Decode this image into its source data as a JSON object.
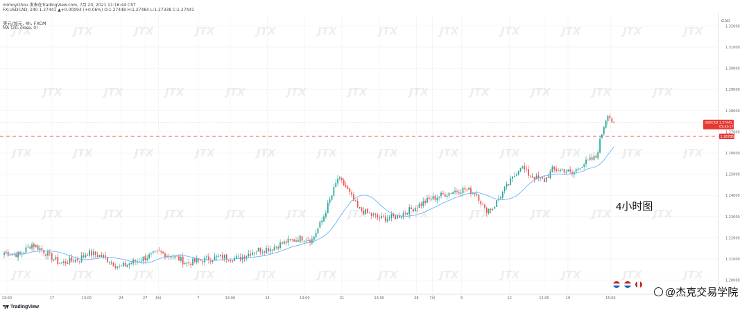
{
  "header": {
    "line1": "mimoyizhou 发表在TradingView.com, 7月 20, 2021 11:16:44 CST",
    "line2": "FX:USDCAD, 240  1.27441  ▲+0.00094 (+0.06%)  O:1.27448  H:1.27484  L:1.27338  C:1.27441",
    "symbol_name": "美元/加元, 4h, FXCM",
    "ma_label": "MA (20, close, 0)"
  },
  "axis": {
    "currency": "CAD",
    "price_ticks": [
      "1.32000",
      "1.31000",
      "1.30000",
      "1.29000",
      "1.28000",
      "1.27000",
      "1.26000",
      "1.25000",
      "1.24000",
      "1.23000",
      "1.22000",
      "1.21000",
      "1.20000"
    ],
    "time_ticks": [
      "13:00",
      "17",
      "13:00",
      "24",
      "27",
      "6月",
      "7",
      "13:00",
      "14",
      "13:00",
      "21",
      "13:00",
      "28",
      "7月",
      "6",
      "12",
      "13:00",
      "19",
      "15:00"
    ]
  },
  "price_tag": {
    "symbol": "USDCAD",
    "price": "1.27441",
    "countdown": "01:43:17"
  },
  "level_tag": "1.26785",
  "annotation": "4小时图",
  "watermark": "JTX",
  "logo": "TradingView",
  "credit": "@杰克交易学院",
  "colors": {
    "up": "#26a69a",
    "down": "#ef5350",
    "ma": "#64b5f6",
    "level": "#e53935"
  },
  "chart_data": {
    "type": "candlestick",
    "symbol": "USDCAD",
    "timeframe": "4h",
    "source": "FXCM",
    "ylim": [
      1.195,
      1.325
    ],
    "level": 1.26785,
    "last_price": 1.27441,
    "ma_period": 20,
    "anchors": [
      [
        0,
        1.213
      ],
      [
        8,
        1.212
      ],
      [
        14,
        1.217
      ],
      [
        18,
        1.215
      ],
      [
        28,
        1.208
      ],
      [
        38,
        1.21
      ],
      [
        42,
        1.213
      ],
      [
        50,
        1.211
      ],
      [
        58,
        1.206
      ],
      [
        66,
        1.209
      ],
      [
        72,
        1.211
      ],
      [
        78,
        1.213
      ],
      [
        86,
        1.211
      ],
      [
        92,
        1.208
      ],
      [
        102,
        1.21
      ],
      [
        110,
        1.211
      ],
      [
        118,
        1.21
      ],
      [
        126,
        1.214
      ],
      [
        134,
        1.215
      ],
      [
        142,
        1.218
      ],
      [
        150,
        1.22
      ],
      [
        155,
        1.219
      ],
      [
        160,
        1.228
      ],
      [
        165,
        1.24
      ],
      [
        168,
        1.248
      ],
      [
        172,
        1.244
      ],
      [
        178,
        1.234
      ],
      [
        184,
        1.231
      ],
      [
        190,
        1.229
      ],
      [
        198,
        1.23
      ],
      [
        206,
        1.234
      ],
      [
        214,
        1.238
      ],
      [
        220,
        1.24
      ],
      [
        226,
        1.242
      ],
      [
        232,
        1.243
      ],
      [
        238,
        1.241
      ],
      [
        242,
        1.233
      ],
      [
        246,
        1.234
      ],
      [
        250,
        1.24
      ],
      [
        256,
        1.248
      ],
      [
        260,
        1.254
      ],
      [
        264,
        1.25
      ],
      [
        268,
        1.248
      ],
      [
        272,
        1.247
      ],
      [
        276,
        1.252
      ],
      [
        282,
        1.252
      ],
      [
        286,
        1.25
      ],
      [
        290,
        1.254
      ],
      [
        294,
        1.256
      ],
      [
        298,
        1.258
      ],
      [
        302,
        1.273
      ],
      [
        304,
        1.279
      ],
      [
        306,
        1.275
      ],
      [
        307,
        1.2744
      ]
    ],
    "ohlc_note": "price series reconstructed from the visible chart"
  }
}
